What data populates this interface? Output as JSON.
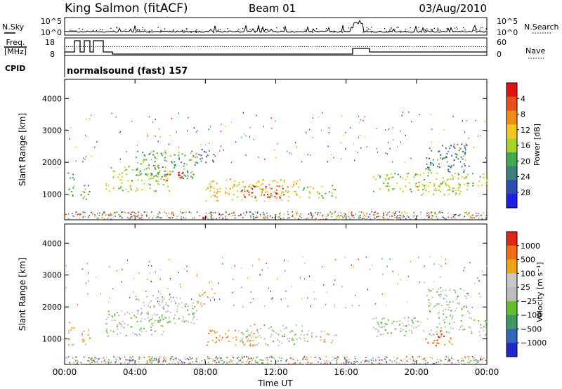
{
  "header": {
    "station": "King Salmon (fitACF)",
    "beam": "Beam 01",
    "date": "03/Aug/2010"
  },
  "strip1": {
    "left_label": "N.Sky",
    "right_label": "N.Search",
    "left_ticks": [
      "10^5",
      "10^0"
    ],
    "right_ticks": [
      "10^5",
      "10^0"
    ]
  },
  "strip2": {
    "left_label_line1": "Freq.",
    "left_label_line2": "[MHz]",
    "left_ticks": [
      "18",
      "8"
    ],
    "right_label": "Nave",
    "right_ticks": [
      "60",
      "0"
    ],
    "cpid_label": "CPID",
    "cpid_text": "normalsound (fast) 157"
  },
  "colors": {
    "power": [
      "#1e1ee6",
      "#2a4fb0",
      "#3e7f7a",
      "#3faa50",
      "#a8d428",
      "#f2c81e",
      "#f08c14",
      "#e8501a",
      "#e01414"
    ],
    "velocity": [
      "#1e28c8",
      "#2f68b8",
      "#3e9a60",
      "#62c02c",
      "#bcbcbc",
      "#c8c8c8",
      "#f0a418",
      "#f06e10",
      "#e02818"
    ]
  },
  "chart_data": [
    {
      "type": "heatmap",
      "name": "power",
      "ylabel": "Slant Range [km]",
      "xlabel": "Time UT",
      "xticks": [
        "00:00",
        "04:00",
        "08:00",
        "12:00",
        "16:00",
        "20:00",
        "00:00"
      ],
      "yticks": [
        1000,
        2000,
        3000,
        4000
      ],
      "ylim": [
        200,
        4600
      ],
      "xlim_hours": [
        0,
        24
      ],
      "colorbar": {
        "label": "Power [dB]",
        "tick_labels": [
          "4",
          "8",
          "12",
          "16",
          "20",
          "24",
          "28"
        ],
        "range": [
          0,
          30
        ]
      },
      "scatter_regions": [
        {
          "t0": 0.1,
          "t1": 0.5,
          "r0": 800,
          "r1": 1800,
          "level": 3
        },
        {
          "t0": 0.9,
          "t1": 1.4,
          "r0": 800,
          "r1": 1500,
          "level": 3
        },
        {
          "t0": 2.3,
          "t1": 6.0,
          "r0": 1100,
          "r1": 1900,
          "level": 4
        },
        {
          "t0": 4.0,
          "t1": 7.5,
          "r0": 1500,
          "r1": 2400,
          "level": 3
        },
        {
          "t0": 5.5,
          "t1": 6.8,
          "r0": 1450,
          "r1": 1750,
          "level": 8
        },
        {
          "t0": 7.5,
          "t1": 8.5,
          "r0": 2000,
          "r1": 2500,
          "level": 2
        },
        {
          "t0": 8.0,
          "t1": 13.5,
          "r0": 800,
          "r1": 1500,
          "level": 5
        },
        {
          "t0": 10.0,
          "t1": 12.5,
          "r0": 900,
          "r1": 1300,
          "level": 8
        },
        {
          "t0": 13.5,
          "t1": 15.5,
          "r0": 900,
          "r1": 1300,
          "level": 4
        },
        {
          "t0": 17.5,
          "t1": 24.0,
          "r0": 1100,
          "r1": 1700,
          "level": 4
        },
        {
          "t0": 20.0,
          "t1": 22.5,
          "r0": 1000,
          "r1": 1400,
          "level": 5
        },
        {
          "t0": 20.5,
          "t1": 23.0,
          "r0": 1700,
          "r1": 2600,
          "level": 2
        }
      ]
    },
    {
      "type": "heatmap",
      "name": "velocity",
      "ylabel": "Slant Range [km]",
      "xlabel": "Time UT",
      "xticks": [
        "00:00",
        "04:00",
        "08:00",
        "12:00",
        "16:00",
        "20:00",
        "00:00"
      ],
      "yticks": [
        1000,
        2000,
        3000,
        4000
      ],
      "ylim": [
        200,
        4600
      ],
      "xlim_hours": [
        0,
        24
      ],
      "colorbar": {
        "label": "Velocity [m s⁻¹]",
        "tick_labels": [
          "1000",
          "500",
          "100",
          "25",
          "−25",
          "−100",
          "−500",
          "−1000"
        ],
        "range": [
          -1000,
          1000
        ]
      },
      "scatter_regions": [
        {
          "t0": 0.1,
          "t1": 0.5,
          "r0": 800,
          "r1": 1800,
          "level": 5
        },
        {
          "t0": 0.9,
          "t1": 1.4,
          "r0": 800,
          "r1": 1500,
          "level": 6
        },
        {
          "t0": 2.3,
          "t1": 6.0,
          "r0": 1100,
          "r1": 1900,
          "level": 4
        },
        {
          "t0": 4.0,
          "t1": 7.5,
          "r0": 1500,
          "r1": 2400,
          "level": 4
        },
        {
          "t0": 7.5,
          "t1": 8.5,
          "r0": 2000,
          "r1": 2500,
          "level": 5
        },
        {
          "t0": 8.0,
          "t1": 11.0,
          "r0": 800,
          "r1": 1300,
          "level": 6
        },
        {
          "t0": 10.0,
          "t1": 13.5,
          "r0": 800,
          "r1": 1500,
          "level": 4
        },
        {
          "t0": 13.5,
          "t1": 15.5,
          "r0": 900,
          "r1": 1300,
          "level": 5
        },
        {
          "t0": 17.5,
          "t1": 24.0,
          "r0": 1100,
          "r1": 1700,
          "level": 4
        },
        {
          "t0": 20.5,
          "t1": 22.0,
          "r0": 800,
          "r1": 1300,
          "level": 7
        },
        {
          "t0": 20.5,
          "t1": 23.0,
          "r0": 1700,
          "r1": 2600,
          "level": 4
        }
      ]
    }
  ]
}
